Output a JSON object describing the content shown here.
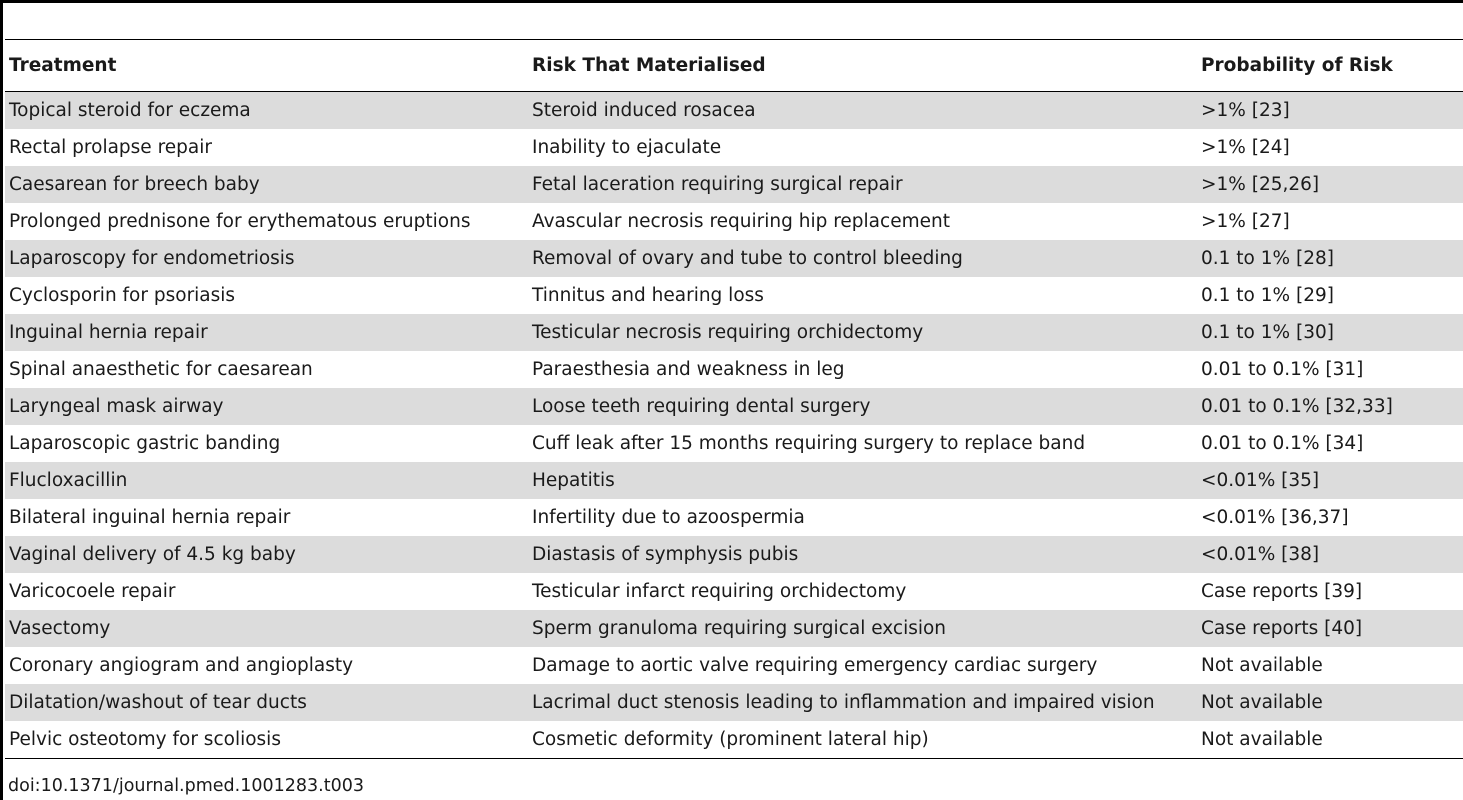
{
  "table": {
    "headers": [
      "Treatment",
      "Risk That Materialised",
      "Probability of Risk"
    ],
    "rows": [
      [
        "Topical steroid for eczema",
        "Steroid induced rosacea",
        ">1% [23]"
      ],
      [
        "Rectal prolapse repair",
        "Inability to ejaculate",
        ">1% [24]"
      ],
      [
        "Caesarean for breech baby",
        "Fetal laceration requiring surgical repair",
        ">1% [25,26]"
      ],
      [
        "Prolonged prednisone for erythematous eruptions",
        "Avascular necrosis requiring hip replacement",
        ">1% [27]"
      ],
      [
        "Laparoscopy for endometriosis",
        "Removal of ovary and tube to control bleeding",
        "0.1 to 1% [28]"
      ],
      [
        "Cyclosporin for psoriasis",
        "Tinnitus and hearing loss",
        "0.1 to 1% [29]"
      ],
      [
        "Inguinal hernia repair",
        "Testicular necrosis requiring orchidectomy",
        "0.1 to 1% [30]"
      ],
      [
        "Spinal anaesthetic for caesarean",
        "Paraesthesia and weakness in leg",
        "0.01 to 0.1% [31]"
      ],
      [
        "Laryngeal mask airway",
        "Loose teeth requiring dental surgery",
        "0.01 to 0.1% [32,33]"
      ],
      [
        "Laparoscopic gastric banding",
        "Cuff leak after 15 months requiring surgery to replace band",
        "0.01 to 0.1% [34]"
      ],
      [
        "Flucloxacillin",
        "Hepatitis",
        "<0.01% [35]"
      ],
      [
        "Bilateral inguinal hernia repair",
        "Infertility due to azoospermia",
        "<0.01% [36,37]"
      ],
      [
        "Vaginal delivery of 4.5 kg baby",
        "Diastasis of symphysis pubis",
        "<0.01% [38]"
      ],
      [
        "Varicocoele repair",
        "Testicular infarct requiring orchidectomy",
        "Case reports [39]"
      ],
      [
        "Vasectomy",
        "Sperm granuloma requiring surgical excision",
        "Case reports [40]"
      ],
      [
        "Coronary angiogram and angioplasty",
        "Damage to aortic valve requiring emergency cardiac surgery",
        "Not available"
      ],
      [
        "Dilatation/washout of tear ducts",
        "Lacrimal duct stenosis leading to inflammation and impaired vision",
        "Not available"
      ],
      [
        "Pelvic osteotomy for scoliosis",
        "Cosmetic deformity (prominent lateral hip)",
        "Not available"
      ]
    ]
  },
  "caption": "doi:10.1371/journal.pmed.1001283.t003"
}
